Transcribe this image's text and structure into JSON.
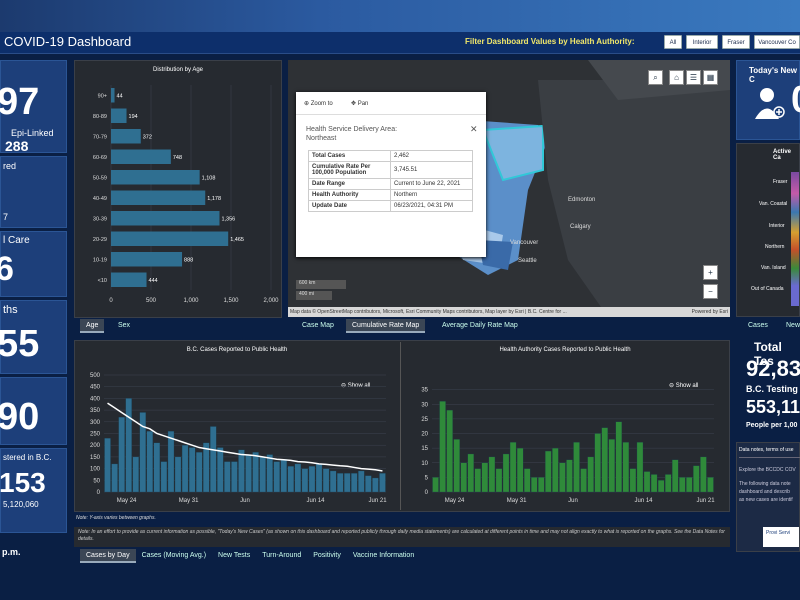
{
  "header": {
    "title": "COVID-19 Dashboard",
    "filter_label": "Filter Dashboard Values by Health Authority:",
    "filters": [
      "All",
      "Interior",
      "Fraser",
      "Vancouver Co"
    ]
  },
  "left": {
    "stat1": "97",
    "epi_label": "Epi-Linked",
    "epi_value": "288",
    "red_label": "red",
    "seven": "7",
    "icare_label": "l Care",
    "six": "6",
    "deaths_label": "ths",
    "deaths_value": "55",
    "ninety": "90",
    "registered_label": "stered in B.C.",
    "reg_value": "153",
    "reg_sub": "5,120,060",
    "pm": "p.m."
  },
  "age_chart": {
    "title": "Distribution by Age",
    "tabs": [
      "Age",
      "Sex"
    ]
  },
  "chart_data": [
    {
      "type": "bar",
      "title": "Distribution by Age",
      "categories": [
        "90+",
        "80-89",
        "70-79",
        "60-69",
        "50-59",
        "40-49",
        "30-39",
        "20-29",
        "10-19",
        "<10"
      ],
      "values": [
        44,
        194,
        372,
        748,
        1108,
        1178,
        1356,
        1465,
        888,
        444
      ],
      "xlim": [
        0,
        2000
      ],
      "xticks": [
        0,
        500,
        "1,000",
        "1,500",
        "2,000"
      ],
      "labels": [
        "44",
        "194",
        "372",
        "748",
        "1,108",
        "1,178",
        "1,356",
        "1,465",
        "888",
        "444"
      ]
    },
    {
      "type": "bar",
      "title": "B.C. Cases Reported to Public Health",
      "ylim": [
        0,
        500
      ],
      "yticks": [
        0,
        50,
        100,
        150,
        200,
        250,
        300,
        350,
        400,
        450,
        500
      ],
      "xticks": [
        "May 24",
        "May 31",
        "Jun",
        "Jun 14",
        "Jun 21"
      ],
      "values": [
        230,
        120,
        320,
        400,
        150,
        340,
        260,
        210,
        130,
        260,
        150,
        200,
        190,
        170,
        210,
        280,
        190,
        130,
        130,
        180,
        160,
        170,
        150,
        160,
        130,
        140,
        110,
        120,
        100,
        110,
        120,
        100,
        90,
        80,
        80,
        80,
        90,
        70,
        60,
        80
      ],
      "moving_avg": [
        380,
        360,
        340,
        320,
        300,
        280,
        270,
        250,
        240,
        230,
        220,
        210,
        200,
        190,
        185,
        180,
        175,
        170,
        165,
        160,
        158,
        155,
        150,
        145,
        140,
        138,
        135,
        130,
        128,
        125,
        120,
        118,
        115,
        112,
        110,
        105,
        100,
        98,
        95,
        90
      ]
    },
    {
      "type": "bar",
      "title": "Health Authority Cases Reported to Public Health",
      "ylim": [
        0,
        40
      ],
      "yticks": [
        0,
        5,
        10,
        15,
        20,
        25,
        30,
        35
      ],
      "xticks": [
        "May 24",
        "May 31",
        "Jun",
        "Jun 14",
        "Jun 21"
      ],
      "values": [
        5,
        31,
        28,
        18,
        10,
        13,
        8,
        10,
        12,
        8,
        13,
        17,
        15,
        8,
        5,
        5,
        14,
        15,
        10,
        11,
        17,
        8,
        12,
        20,
        22,
        18,
        24,
        17,
        8,
        17,
        7,
        6,
        4,
        6,
        11,
        5,
        5,
        9,
        12,
        5
      ]
    }
  ],
  "map": {
    "popup": {
      "zoom": "Zoom to",
      "pan": "Pan",
      "area": "Health Service Delivery Area:",
      "area_name": "Northeast",
      "rows": [
        [
          "Total Cases",
          "2,462"
        ],
        [
          "Cumulative Rate Per 100,000 Population",
          "3,745.51"
        ],
        [
          "Date Range",
          "Current to June 22, 2021"
        ],
        [
          "Health Authority",
          "Northern"
        ],
        [
          "Update Date",
          "06/23/2021, 04:31 PM"
        ]
      ]
    },
    "cities": [
      "Edmonton",
      "Calgary",
      "Vancouver",
      "Seattle"
    ],
    "scale": [
      "600 km",
      "400 mi"
    ],
    "attribution": "Map data © OpenStreetMap contributors, Microsoft, Esri Community Maps contributors, Map layer by Esri | B.C. Centre for ...",
    "powered": "Powered by Esri",
    "tabs": [
      "Case Map",
      "Cumulative Rate Map",
      "Average Daily Rate Map"
    ]
  },
  "right": {
    "today_label": "Today's New C",
    "today_value": "0",
    "active_label": "Active Ca",
    "regions": [
      "Fraser",
      "Van. Coastal",
      "Interior",
      "Northern",
      "Van. Island",
      "Out of Canada"
    ],
    "tabs": [
      "Cases",
      "New"
    ],
    "total_tests_label": "Total Tes",
    "total_tests": "92,83",
    "bc_testing": "B.C. Testing",
    "bc_testing_value": "553,11",
    "people": "People per 1,00",
    "notes_title": "Data notes, terms of use",
    "notes1": "Explore the BCCDC COV",
    "notes2": "The following data note",
    "notes3": "dashboard and describ",
    "notes4": "as new cases are identif",
    "logo": "Provi Servi"
  },
  "bottom": {
    "note": "Note: Y-axis varies between graphs.",
    "disclaimer": "Note: In an effort to provide as current information as possible, \"Today's New Cases\" (as shown on this dashboard and reported publicly through daily media statements) are calculated at different points in time and may not align exactly to what is reported on the graphs. See the Data Notes for details.",
    "show_all": "Show all",
    "tabs": [
      "Cases by Day",
      "Cases (Moving Avg.)",
      "New Tests",
      "Turn-Around",
      "Positivity",
      "Vaccine Information"
    ]
  },
  "colors": {
    "bar_blue": "#2f6f91",
    "bar_green": "#2f8a3a",
    "accent": "#f2e86a"
  }
}
